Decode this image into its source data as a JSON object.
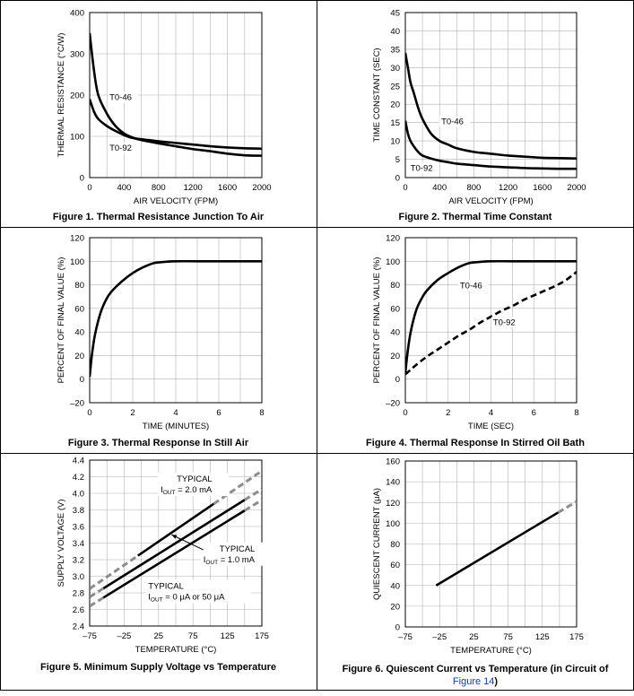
{
  "captions": {
    "fig1": "Figure 1. Thermal Resistance Junction To Air",
    "fig2": "Figure 2. Thermal Time Constant",
    "fig3": "Figure 3. Thermal Response In Still Air",
    "fig4": "Figure 4. Thermal Response In Stirred Oil Bath",
    "fig5": "Figure 5. Minimum Supply Voltage vs Temperature",
    "fig6_a": "Figure 6. Quiescent Current vs Temperature (in Circuit of",
    "fig6_link": "Figure 14",
    "fig6_b": ")"
  },
  "chart_data": [
    {
      "id": "fig1",
      "type": "line",
      "xlabel": "AIR VELOCITY (FPM)",
      "ylabel": "THERMAL RESISTANCE (°C/W)",
      "xlim": [
        0,
        2000
      ],
      "ylim": [
        0,
        400
      ],
      "xticks": [
        0,
        400,
        800,
        1200,
        1600,
        2000
      ],
      "yticks": [
        0,
        100,
        200,
        300,
        400
      ],
      "grid": true,
      "series": [
        {
          "name": "T0-46",
          "x": [
            0,
            50,
            100,
            200,
            300,
            400,
            500,
            600,
            800,
            1000,
            1200,
            1400,
            1600,
            1800,
            2000
          ],
          "y": [
            350,
            260,
            200,
            155,
            125,
            107,
            97,
            91,
            83,
            76,
            69,
            64,
            58,
            54,
            53
          ]
        },
        {
          "name": "T0-92",
          "x": [
            0,
            50,
            100,
            200,
            300,
            400,
            500,
            600,
            800,
            1000,
            1200,
            1400,
            1600,
            1800,
            2000
          ],
          "y": [
            190,
            160,
            142,
            125,
            113,
            103,
            96,
            93,
            88,
            84,
            80,
            76,
            73,
            71,
            70
          ]
        }
      ],
      "annotations": [
        {
          "text": "T0-46",
          "x": 230,
          "y": 188
        },
        {
          "text": "T0-92",
          "x": 230,
          "y": 65
        }
      ]
    },
    {
      "id": "fig2",
      "type": "line",
      "xlabel": "AIR VELOCITY (FPM)",
      "ylabel": "TIME CONSTANT (SEC)",
      "xlim": [
        0,
        2000
      ],
      "ylim": [
        0,
        45
      ],
      "xticks": [
        0,
        400,
        800,
        1200,
        1600,
        2000
      ],
      "yticks": [
        0,
        5,
        10,
        15,
        20,
        25,
        30,
        35,
        40,
        45
      ],
      "grid": true,
      "series": [
        {
          "name": "T0-46",
          "x": [
            0,
            30,
            60,
            100,
            150,
            200,
            300,
            400,
            500,
            600,
            800,
            1000,
            1200,
            1400,
            1600,
            1800,
            2000
          ],
          "y": [
            34,
            30,
            26,
            23,
            19,
            16,
            12,
            10,
            9,
            8,
            7,
            6.5,
            6,
            5.7,
            5.4,
            5.3,
            5.2
          ]
        },
        {
          "name": "T0-92",
          "x": [
            0,
            30,
            60,
            100,
            150,
            200,
            300,
            400,
            500,
            600,
            800,
            1000,
            1200,
            1400,
            1600,
            1800,
            2000
          ],
          "y": [
            15.5,
            12,
            10,
            8.5,
            7,
            6,
            5.2,
            4.6,
            4.2,
            3.8,
            3.4,
            3,
            2.8,
            2.6,
            2.5,
            2.4,
            2.4
          ]
        }
      ],
      "annotations": [
        {
          "text": "T0-46",
          "x": 420,
          "y": 14.5
        },
        {
          "text": "T0-92",
          "x": 60,
          "y": 1.8
        }
      ]
    },
    {
      "id": "fig3",
      "type": "line",
      "xlabel": "TIME (MINUTES)",
      "ylabel": "PERCENT OF FINAL VALUE (%)",
      "xlim": [
        0,
        8
      ],
      "ylim": [
        -20,
        120
      ],
      "xticks": [
        0,
        2,
        4,
        6,
        8
      ],
      "yticks": [
        -20,
        0,
        20,
        40,
        60,
        80,
        100,
        120
      ],
      "grid": true,
      "series": [
        {
          "name": "",
          "x": [
            0,
            0.1,
            0.25,
            0.5,
            0.75,
            1,
            1.5,
            2,
            2.5,
            3,
            3.5,
            4,
            5,
            6,
            7,
            8
          ],
          "y": [
            2,
            20,
            38,
            56,
            67,
            74,
            83,
            90,
            95,
            98.5,
            99.5,
            100,
            100,
            100,
            100,
            100
          ]
        }
      ]
    },
    {
      "id": "fig4",
      "type": "line",
      "xlabel": "TIME (SEC)",
      "ylabel": "PERCENT OF FINAL VALUE (%)",
      "xlim": [
        0,
        8
      ],
      "ylim": [
        -20,
        120
      ],
      "xticks": [
        0,
        2,
        4,
        6,
        8
      ],
      "yticks": [
        -20,
        0,
        20,
        40,
        60,
        80,
        100,
        120
      ],
      "grid": true,
      "series": [
        {
          "name": "T0-46",
          "style": "solid",
          "x": [
            0,
            0.1,
            0.25,
            0.5,
            0.75,
            1,
            1.5,
            2,
            2.5,
            3,
            3.5,
            4,
            5,
            6,
            7,
            8
          ],
          "y": [
            5,
            22,
            40,
            58,
            68,
            75,
            84,
            90,
            95,
            98.5,
            99.5,
            100,
            100,
            100,
            100,
            100
          ]
        },
        {
          "name": "T0-92",
          "style": "dashed",
          "x": [
            0,
            0.5,
            1,
            1.5,
            2,
            2.5,
            3,
            3.5,
            4,
            4.5,
            5,
            5.5,
            6,
            6.5,
            7,
            7.5,
            8
          ],
          "y": [
            4,
            12,
            19,
            25,
            31,
            37,
            42,
            48,
            53,
            58,
            62,
            67,
            71,
            75,
            79,
            84,
            91
          ]
        }
      ],
      "annotations": [
        {
          "text": "T0-46",
          "x": 2.55,
          "y": 77
        },
        {
          "text": "T0-92",
          "x": 4.1,
          "y": 46
        }
      ]
    },
    {
      "id": "fig5",
      "type": "line",
      "xlabel": "TEMPERATURE (°C)",
      "ylabel": "SUPPLY VOLTAGE (V)",
      "xlim": [
        -75,
        175
      ],
      "ylim": [
        2.4,
        4.4
      ],
      "xticks": [
        -75,
        -25,
        25,
        75,
        125,
        175
      ],
      "yticks": [
        2.4,
        2.6,
        2.8,
        3.0,
        3.2,
        3.4,
        3.6,
        3.8,
        4.0,
        4.2,
        4.4
      ],
      "grid": true,
      "series": [
        {
          "name": "TYPICAL IOUT = 2.0 mA",
          "solid_range": [
            -5,
            105
          ],
          "x": [
            -75,
            175
          ],
          "y": [
            2.85,
            4.27
          ]
        },
        {
          "name": "TYPICAL IOUT = 1.0 mA",
          "solid_range": [
            -55,
            150
          ],
          "x": [
            -75,
            175
          ],
          "y": [
            2.75,
            4.05
          ]
        },
        {
          "name": "TYPICAL IOUT = 0 μA or 50 μA",
          "solid_range": [
            -55,
            150
          ],
          "x": [
            -75,
            175
          ],
          "y": [
            2.64,
            3.92
          ]
        }
      ],
      "annotations": [
        {
          "line1": "TYPICAL",
          "line2_pre": "I",
          "sub": "OUT",
          "line2_post": " = 2.0 mA",
          "x": 28,
          "y": 4.14
        },
        {
          "line1": "TYPICAL",
          "line2_pre": "I",
          "sub": "OUT",
          "line2_post": " = 1.0 mA",
          "x": 90,
          "y": 3.3
        },
        {
          "line1": "TYPICAL",
          "line2_pre": "I",
          "sub": "OUT",
          "line2_post": " = 0 μA or 50 μA",
          "x": 10,
          "y": 2.85
        }
      ]
    },
    {
      "id": "fig6",
      "type": "line",
      "xlabel": "TEMPERATURE (°C)",
      "ylabel": "QUIESCENT CURRENT (μA)",
      "xlim": [
        -75,
        175
      ],
      "ylim": [
        0,
        160
      ],
      "xticks": [
        -75,
        -25,
        25,
        75,
        125,
        175
      ],
      "yticks": [
        0,
        20,
        40,
        60,
        80,
        100,
        120,
        140,
        160
      ],
      "grid": true,
      "series": [
        {
          "name": "",
          "solid_range": [
            -30,
            148
          ],
          "dashed_range": [
            148,
            175
          ],
          "x": [
            -30,
            175
          ],
          "y": [
            40,
            121
          ]
        }
      ]
    }
  ]
}
